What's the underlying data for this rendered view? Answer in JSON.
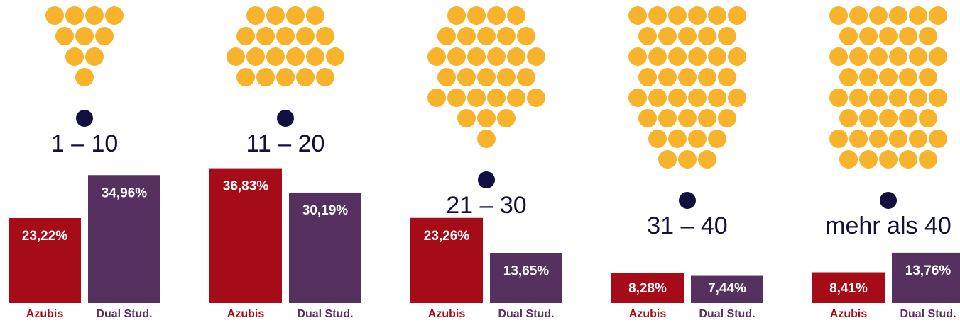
{
  "chart_data": {
    "type": "bar",
    "categories": [
      "1 – 10",
      "11 – 20",
      "21 – 30",
      "31 – 40",
      "mehr als 40"
    ],
    "series": [
      {
        "name": "Azubis",
        "color": "#a50c17",
        "values": [
          23.22,
          36.83,
          23.26,
          8.28,
          8.41
        ],
        "value_labels": [
          "23,22%",
          "36,83%",
          "23,26%",
          "8,28%",
          "8,41%"
        ]
      },
      {
        "name": "Dual Stud.",
        "color": "#56305f",
        "values": [
          34.96,
          30.19,
          13.65,
          7.44,
          13.76
        ],
        "value_labels": [
          "34,96%",
          "30,19%",
          "13,65%",
          "7,44%",
          "13,76%"
        ]
      }
    ]
  }
}
